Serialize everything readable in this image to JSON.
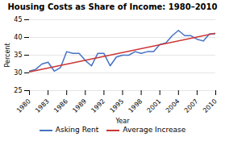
{
  "chart_data": {
    "type": "line",
    "title": "Housing Costs as Share of Income: 1980–2010",
    "xlabel": "Year",
    "ylabel": "Percent",
    "series": [
      {
        "name": "Asking Rent",
        "color": "#4472C4",
        "x": [
          1980,
          1981,
          1982,
          1983,
          1984,
          1985,
          1986,
          1987,
          1988,
          1989,
          1990,
          1991,
          1992,
          1993,
          1994,
          1995,
          1996,
          1997,
          1998,
          1999,
          2000,
          2001,
          2002,
          2003,
          2004,
          2005,
          2006,
          2007,
          2008,
          2009,
          2010
        ],
        "values": [
          30.5,
          31.0,
          32.5,
          33.0,
          30.5,
          31.5,
          36.0,
          35.5,
          35.5,
          33.5,
          32.0,
          35.5,
          35.5,
          32.0,
          34.5,
          35.0,
          35.0,
          36.0,
          35.5,
          36.0,
          36.0,
          38.0,
          38.5,
          40.5,
          42.0,
          40.5,
          40.5,
          39.5,
          39.0,
          41.0,
          41.0
        ]
      },
      {
        "name": "Average Increase",
        "color": "#cc3333",
        "x": [
          1980,
          2010
        ],
        "values": [
          30.3,
          41.2
        ]
      }
    ],
    "xlim": [
      1980,
      2010
    ],
    "xticks": [
      1980,
      1983,
      1986,
      1989,
      1992,
      1995,
      1998,
      2001,
      2004,
      2007,
      2010
    ],
    "ylim": [
      25,
      45
    ],
    "yticks": [
      25,
      30,
      35,
      40,
      45
    ],
    "grid": true,
    "legend": "bottom"
  }
}
